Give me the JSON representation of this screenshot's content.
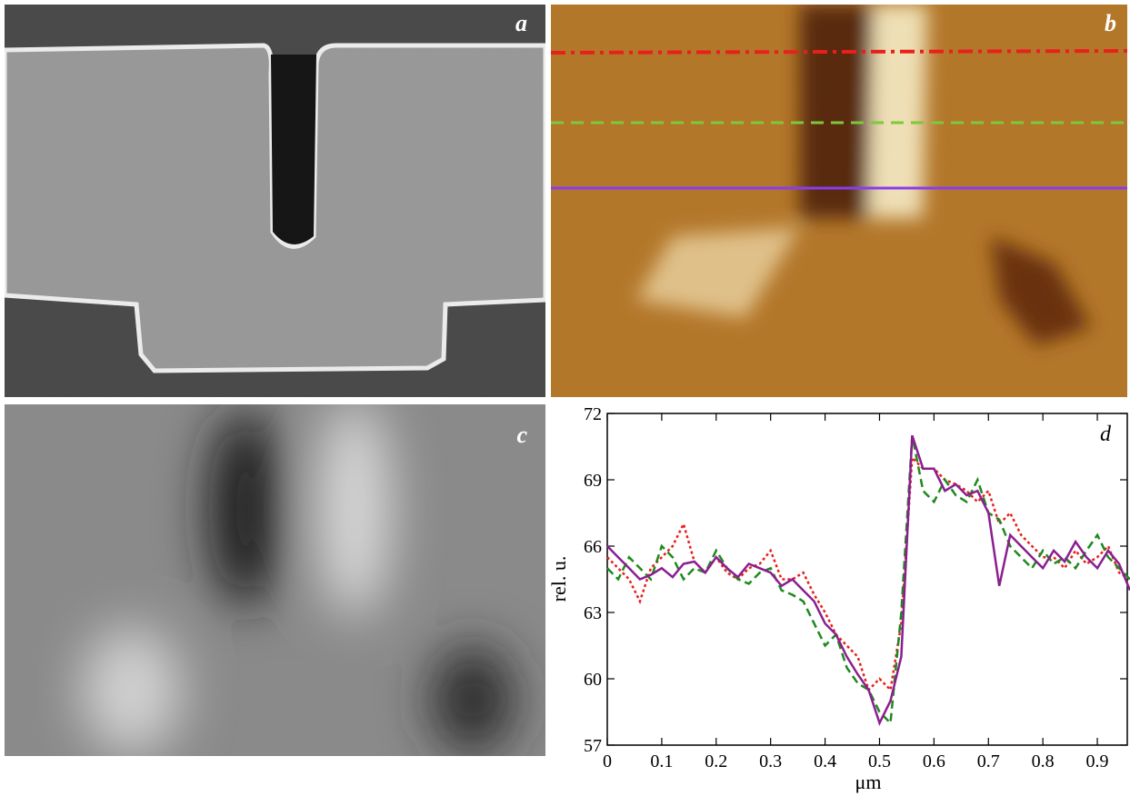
{
  "panels": {
    "a": "a",
    "b": "b",
    "c": "c"
  },
  "chart_data": {
    "type": "line",
    "panel_label": "d",
    "x_label": "μm",
    "y_label": "rel. u.",
    "x": [
      0,
      0.02,
      0.04,
      0.06,
      0.08,
      0.1,
      0.12,
      0.14,
      0.16,
      0.18,
      0.2,
      0.22,
      0.24,
      0.26,
      0.28,
      0.3,
      0.32,
      0.34,
      0.36,
      0.38,
      0.4,
      0.42,
      0.44,
      0.46,
      0.48,
      0.5,
      0.52,
      0.54,
      0.56,
      0.58,
      0.6,
      0.62,
      0.64,
      0.66,
      0.68,
      0.7,
      0.72,
      0.74,
      0.76,
      0.78,
      0.8,
      0.82,
      0.84,
      0.86,
      0.88,
      0.9,
      0.92,
      0.94,
      0.96
    ],
    "series": [
      {
        "color": "#e8201c",
        "dash": "3 3",
        "values": [
          65.5,
          65,
          64.5,
          63.5,
          65,
          65.5,
          66,
          67,
          65.3,
          64.8,
          65.5,
          64.8,
          64.5,
          65,
          65.2,
          65.8,
          64.5,
          64.5,
          64.8,
          63.8,
          63,
          62,
          61.5,
          61,
          59.5,
          60,
          59.5,
          62.5,
          70,
          69.5,
          69.5,
          69,
          68.8,
          68.5,
          68,
          68.5,
          67,
          67.5,
          66.5,
          66,
          65.5,
          65.5,
          65,
          65.8,
          65.2,
          65.5,
          66,
          64.8,
          64.5
        ]
      },
      {
        "color": "#1e8a1e",
        "dash": "9 5",
        "values": [
          65,
          64.5,
          65.5,
          65,
          64.5,
          66,
          65.5,
          64.5,
          65,
          64.8,
          65.8,
          65,
          64.5,
          64.3,
          64.8,
          65,
          64,
          63.8,
          63.5,
          62.5,
          61.5,
          62,
          60.5,
          59.8,
          59.5,
          58.5,
          58,
          63,
          71,
          68.5,
          68,
          69,
          68.3,
          68,
          69,
          67.5,
          67.2,
          66,
          65.5,
          65,
          65.8,
          65.2,
          65.5,
          65,
          65.8,
          66.5,
          65.5,
          65,
          64.5
        ]
      },
      {
        "color": "#8a1f8f",
        "dash": "",
        "values": [
          66,
          65.5,
          65,
          64.5,
          64.7,
          65,
          64.6,
          65.2,
          65.3,
          64.8,
          65.5,
          65,
          64.6,
          65.2,
          65,
          64.8,
          64.2,
          64.5,
          64,
          63.5,
          62.5,
          62,
          61,
          60.2,
          59.5,
          58,
          59,
          61,
          71,
          69.5,
          69.5,
          68.5,
          68.8,
          68.3,
          68.5,
          67.5,
          64.2,
          66.5,
          66,
          65.5,
          65,
          65.8,
          65.3,
          66.2,
          65.5,
          65,
          65.8,
          65.2,
          64
        ]
      }
    ],
    "xlim": [
      0,
      0.955
    ],
    "ylim": [
      57,
      72
    ],
    "xticks": [
      0,
      0.1,
      0.2,
      0.3,
      0.4,
      0.5,
      0.6,
      0.7,
      0.8,
      0.9
    ],
    "yticks": [
      57,
      60,
      63,
      66,
      69,
      72
    ]
  }
}
